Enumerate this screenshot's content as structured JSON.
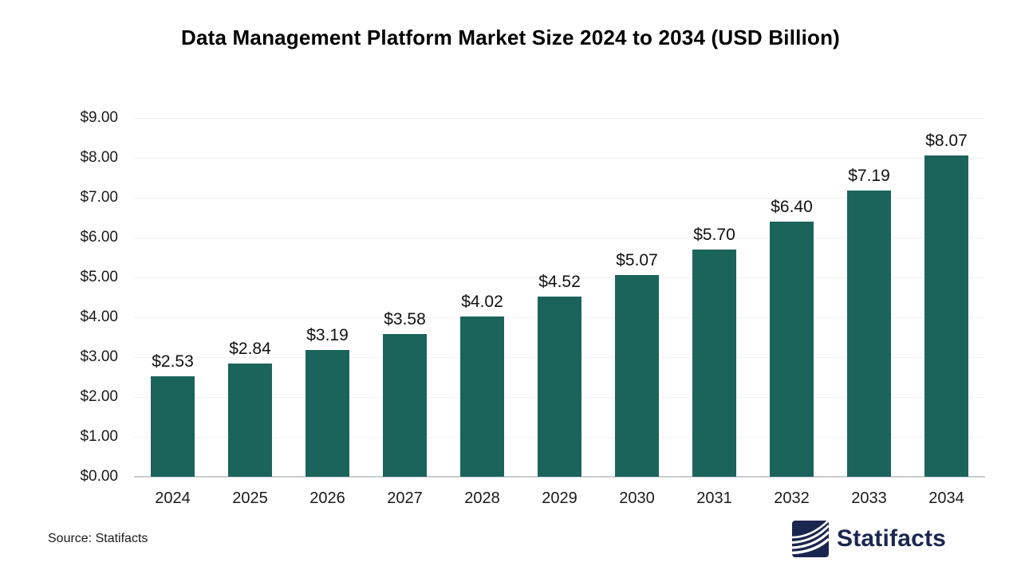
{
  "page": {
    "background": "#ffffff",
    "source_label": "Source: Statifacts",
    "logo": {
      "text": "Statifacts",
      "color": "#1b2650",
      "icon": "statifacts-waves-logo"
    }
  },
  "colors": {
    "bar": "#1b645c",
    "gridline": "#f0f1f2",
    "axis_line": "#c9cdd1",
    "text": "#1a1a1a",
    "navy": "#1b2650"
  },
  "chart_data": {
    "type": "bar",
    "title": "Data Management Platform Market Size 2024 to 2034 (USD Billion)",
    "categories": [
      "2024",
      "2025",
      "2026",
      "2027",
      "2028",
      "2029",
      "2030",
      "2031",
      "2032",
      "2033",
      "2034"
    ],
    "values": [
      2.53,
      2.84,
      3.19,
      3.58,
      4.02,
      4.52,
      5.07,
      5.7,
      6.4,
      7.19,
      8.07
    ],
    "value_labels": [
      "$2.53",
      "$2.84",
      "$3.19",
      "$3.58",
      "$4.02",
      "$4.52",
      "$5.07",
      "$5.70",
      "$6.40",
      "$7.19",
      "$8.07"
    ],
    "xlabel": "",
    "ylabel": "",
    "ylim": [
      0,
      9
    ],
    "ytick_step": 1,
    "ytick_labels": [
      "$0.00",
      "$1.00",
      "$2.00",
      "$3.00",
      "$4.00",
      "$5.00",
      "$6.00",
      "$7.00",
      "$8.00",
      "$9.00"
    ],
    "grid": "horizontal",
    "legend": "none",
    "bar_color": "#1b645c"
  }
}
